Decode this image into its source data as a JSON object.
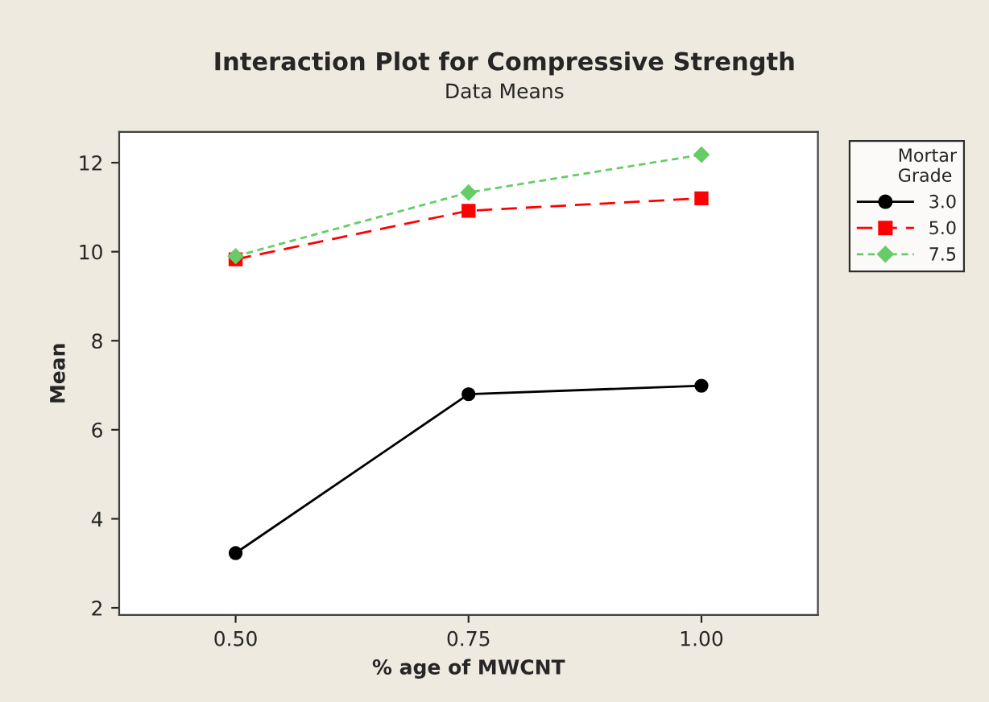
{
  "chart_data": {
    "type": "line",
    "title": "Interaction Plot for Compressive Strength",
    "subtitle": "Data Means",
    "xlabel": "% age of MWCNT",
    "ylabel": "Mean",
    "legend_title": "Mortar\nGrade",
    "x": [
      0.5,
      0.75,
      1.0
    ],
    "series": [
      {
        "name": "3.0",
        "color": "#000000",
        "values": [
          3.23,
          6.8,
          6.99
        ],
        "marker": "circle",
        "line_style": "solid"
      },
      {
        "name": "5.0",
        "color": "#ff0000",
        "values": [
          9.83,
          10.92,
          11.2
        ],
        "marker": "square",
        "line_style": "dashed"
      },
      {
        "name": "7.5",
        "color": "#66cc66",
        "values": [
          9.9,
          11.33,
          12.18
        ],
        "marker": "diamond",
        "line_style": "dotted"
      }
    ],
    "xlim": [
      0.375,
      1.125
    ],
    "xticks": [
      {
        "value": 0.5,
        "label": "0.50"
      },
      {
        "value": 0.75,
        "label": "0.75"
      },
      {
        "value": 1.0,
        "label": "1.00"
      }
    ],
    "ylim": [
      1.84,
      12.69
    ],
    "yticks": [
      2,
      4,
      6,
      8,
      10,
      12
    ],
    "grid": false,
    "legend": "right"
  }
}
